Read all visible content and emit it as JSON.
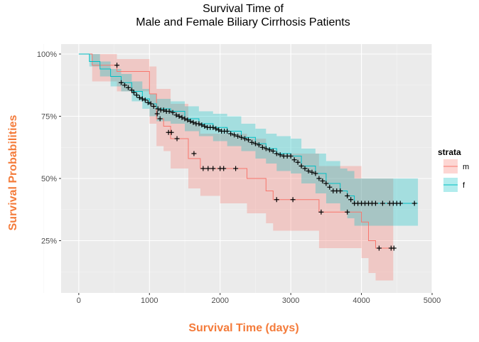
{
  "colors": {
    "panel": "#ebebeb",
    "grid_major": "#ffffff",
    "grid_minor": "#f5f5f5",
    "axis_title": "#f47b3a",
    "m_line": "#f8766d",
    "m_band": "#f8766d",
    "f_line": "#00bfc4",
    "f_band": "#00bfc4",
    "censor": "#000000"
  },
  "chart_data": {
    "type": "line",
    "title": [
      "Survival Time of",
      "Male and Female Biliary Cirrhosis Patients"
    ],
    "xlabel": "Survival Time (days)",
    "ylabel": "Survival Probabilities",
    "xlim": [
      -250,
      5000
    ],
    "ylim": [
      0.04,
      1.04
    ],
    "x_ticks": [
      0,
      1000,
      2000,
      3000,
      4000,
      5000
    ],
    "x_tick_labels": [
      "0",
      "1000",
      "2000",
      "3000",
      "4000",
      "5000"
    ],
    "y_ticks": [
      0.25,
      0.5,
      0.75,
      1.0
    ],
    "y_tick_labels": [
      "25%",
      "50%",
      "75%",
      "100%"
    ],
    "grid": true,
    "legend": {
      "title": "strata",
      "position": "right",
      "entries": [
        {
          "label": "m",
          "series": "m"
        },
        {
          "label": "f",
          "series": "f"
        }
      ]
    },
    "series": [
      {
        "name": "m",
        "step": [
          [
            0,
            1.0
          ],
          [
            190,
            0.955
          ],
          [
            540,
            0.93
          ],
          [
            1000,
            0.84
          ],
          [
            1100,
            0.74
          ],
          [
            1200,
            0.71
          ],
          [
            1300,
            0.66
          ],
          [
            1550,
            0.58
          ],
          [
            1720,
            0.54
          ],
          [
            2380,
            0.5
          ],
          [
            2650,
            0.45
          ],
          [
            2750,
            0.415
          ],
          [
            3400,
            0.365
          ],
          [
            4000,
            0.325
          ],
          [
            4100,
            0.25
          ],
          [
            4200,
            0.22
          ],
          [
            4450,
            0.22
          ]
        ],
        "band": [
          [
            0,
            1.0,
            1.0
          ],
          [
            190,
            1.0,
            0.89
          ],
          [
            540,
            0.98,
            0.85
          ],
          [
            1000,
            0.95,
            0.72
          ],
          [
            1100,
            0.86,
            0.63
          ],
          [
            1200,
            0.86,
            0.61
          ],
          [
            1300,
            0.8,
            0.54
          ],
          [
            1550,
            0.73,
            0.46
          ],
          [
            1720,
            0.68,
            0.43
          ],
          [
            2000,
            0.68,
            0.4
          ],
          [
            2380,
            0.66,
            0.36
          ],
          [
            2650,
            0.62,
            0.32
          ],
          [
            2750,
            0.6,
            0.29
          ],
          [
            3400,
            0.55,
            0.22
          ],
          [
            4000,
            0.5,
            0.18
          ],
          [
            4100,
            0.5,
            0.12
          ],
          [
            4200,
            0.5,
            0.09
          ],
          [
            4450,
            0.5,
            0.09
          ]
        ],
        "censor": [
          [
            540,
            0.955
          ],
          [
            1110,
            0.76
          ],
          [
            1150,
            0.74
          ],
          [
            1270,
            0.685
          ],
          [
            1310,
            0.685
          ],
          [
            1390,
            0.66
          ],
          [
            1630,
            0.6
          ],
          [
            1760,
            0.54
          ],
          [
            1830,
            0.54
          ],
          [
            1900,
            0.54
          ],
          [
            2000,
            0.54
          ],
          [
            2050,
            0.54
          ],
          [
            2220,
            0.54
          ],
          [
            2800,
            0.415
          ],
          [
            3030,
            0.415
          ],
          [
            3430,
            0.365
          ],
          [
            3800,
            0.365
          ],
          [
            4250,
            0.22
          ],
          [
            4420,
            0.22
          ],
          [
            4460,
            0.22
          ]
        ]
      },
      {
        "name": "f",
        "step": [
          [
            0,
            1.0
          ],
          [
            150,
            0.97
          ],
          [
            300,
            0.94
          ],
          [
            450,
            0.91
          ],
          [
            600,
            0.885
          ],
          [
            750,
            0.85
          ],
          [
            900,
            0.82
          ],
          [
            1000,
            0.8
          ],
          [
            1100,
            0.78
          ],
          [
            1300,
            0.77
          ],
          [
            1500,
            0.74
          ],
          [
            1700,
            0.72
          ],
          [
            1900,
            0.705
          ],
          [
            2100,
            0.69
          ],
          [
            2300,
            0.665
          ],
          [
            2500,
            0.64
          ],
          [
            2650,
            0.62
          ],
          [
            2800,
            0.6
          ],
          [
            3000,
            0.59
          ],
          [
            3150,
            0.55
          ],
          [
            3350,
            0.52
          ],
          [
            3500,
            0.48
          ],
          [
            3700,
            0.45
          ],
          [
            3800,
            0.43
          ],
          [
            3900,
            0.4
          ],
          [
            4000,
            0.4
          ],
          [
            4800,
            0.4
          ]
        ],
        "band": [
          [
            0,
            1.0,
            1.0
          ],
          [
            150,
            1.0,
            0.95
          ],
          [
            300,
            0.97,
            0.91
          ],
          [
            450,
            0.94,
            0.87
          ],
          [
            600,
            0.92,
            0.85
          ],
          [
            750,
            0.89,
            0.81
          ],
          [
            900,
            0.86,
            0.78
          ],
          [
            1000,
            0.84,
            0.75
          ],
          [
            1100,
            0.82,
            0.73
          ],
          [
            1300,
            0.81,
            0.72
          ],
          [
            1500,
            0.79,
            0.69
          ],
          [
            1700,
            0.77,
            0.67
          ],
          [
            1900,
            0.76,
            0.65
          ],
          [
            2100,
            0.75,
            0.63
          ],
          [
            2300,
            0.72,
            0.61
          ],
          [
            2500,
            0.7,
            0.58
          ],
          [
            2650,
            0.68,
            0.56
          ],
          [
            2800,
            0.67,
            0.53
          ],
          [
            3000,
            0.66,
            0.52
          ],
          [
            3150,
            0.62,
            0.48
          ],
          [
            3350,
            0.6,
            0.44
          ],
          [
            3500,
            0.57,
            0.4
          ],
          [
            3700,
            0.54,
            0.37
          ],
          [
            3800,
            0.53,
            0.34
          ],
          [
            3900,
            0.5,
            0.31
          ],
          [
            4000,
            0.5,
            0.31
          ],
          [
            4800,
            0.5,
            0.31
          ]
        ],
        "censor": [
          [
            600,
            0.885
          ],
          [
            650,
            0.875
          ],
          [
            700,
            0.865
          ],
          [
            750,
            0.855
          ],
          [
            780,
            0.845
          ],
          [
            820,
            0.835
          ],
          [
            860,
            0.825
          ],
          [
            900,
            0.82
          ],
          [
            940,
            0.815
          ],
          [
            980,
            0.805
          ],
          [
            1020,
            0.8
          ],
          [
            1060,
            0.79
          ],
          [
            1120,
            0.78
          ],
          [
            1160,
            0.775
          ],
          [
            1200,
            0.775
          ],
          [
            1240,
            0.77
          ],
          [
            1280,
            0.77
          ],
          [
            1330,
            0.765
          ],
          [
            1380,
            0.755
          ],
          [
            1420,
            0.75
          ],
          [
            1460,
            0.745
          ],
          [
            1500,
            0.74
          ],
          [
            1540,
            0.735
          ],
          [
            1580,
            0.73
          ],
          [
            1620,
            0.725
          ],
          [
            1660,
            0.72
          ],
          [
            1700,
            0.72
          ],
          [
            1740,
            0.715
          ],
          [
            1780,
            0.71
          ],
          [
            1820,
            0.705
          ],
          [
            1860,
            0.705
          ],
          [
            1900,
            0.705
          ],
          [
            1940,
            0.7
          ],
          [
            1980,
            0.695
          ],
          [
            2020,
            0.69
          ],
          [
            2060,
            0.69
          ],
          [
            2100,
            0.69
          ],
          [
            2150,
            0.68
          ],
          [
            2200,
            0.675
          ],
          [
            2250,
            0.67
          ],
          [
            2300,
            0.665
          ],
          [
            2350,
            0.66
          ],
          [
            2400,
            0.655
          ],
          [
            2450,
            0.645
          ],
          [
            2500,
            0.64
          ],
          [
            2550,
            0.635
          ],
          [
            2600,
            0.625
          ],
          [
            2650,
            0.62
          ],
          [
            2700,
            0.615
          ],
          [
            2750,
            0.61
          ],
          [
            2800,
            0.6
          ],
          [
            2850,
            0.595
          ],
          [
            2900,
            0.59
          ],
          [
            2950,
            0.59
          ],
          [
            3000,
            0.59
          ],
          [
            3050,
            0.575
          ],
          [
            3100,
            0.565
          ],
          [
            3150,
            0.55
          ],
          [
            3200,
            0.54
          ],
          [
            3250,
            0.53
          ],
          [
            3300,
            0.525
          ],
          [
            3350,
            0.52
          ],
          [
            3400,
            0.5
          ],
          [
            3450,
            0.49
          ],
          [
            3500,
            0.48
          ],
          [
            3550,
            0.465
          ],
          [
            3600,
            0.45
          ],
          [
            3650,
            0.45
          ],
          [
            3700,
            0.45
          ],
          [
            3800,
            0.43
          ],
          [
            3850,
            0.415
          ],
          [
            3900,
            0.4
          ],
          [
            3950,
            0.4
          ],
          [
            4000,
            0.4
          ],
          [
            4050,
            0.4
          ],
          [
            4100,
            0.4
          ],
          [
            4150,
            0.4
          ],
          [
            4200,
            0.4
          ],
          [
            4300,
            0.4
          ],
          [
            4400,
            0.4
          ],
          [
            4450,
            0.4
          ],
          [
            4500,
            0.4
          ],
          [
            4550,
            0.4
          ],
          [
            4750,
            0.4
          ]
        ]
      }
    ]
  }
}
